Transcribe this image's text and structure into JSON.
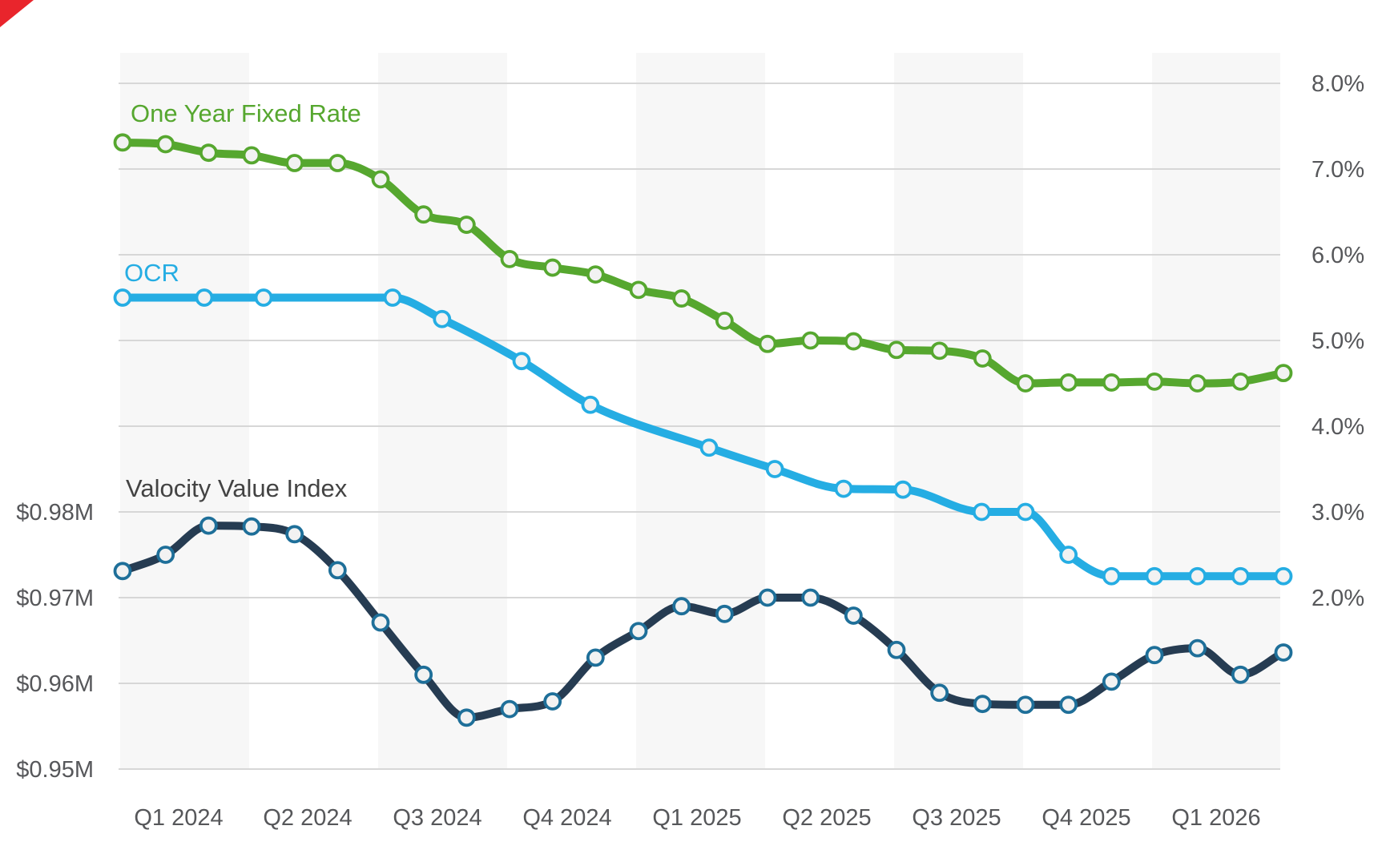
{
  "page": {
    "background": "#ffffff"
  },
  "corner_mark": {
    "color": "#e9252c"
  },
  "chart_data": {
    "type": "line",
    "title": "",
    "x": {
      "tick_labels": [
        "Q1 2024",
        "Q2 2024",
        "Q3 2024",
        "Q4 2024",
        "Q1 2025",
        "Q2 2025",
        "Q3 2025",
        "Q4 2025",
        "Q1 2026"
      ],
      "span": "Jan 2024 - Apr 2026",
      "interval": "monthly"
    },
    "y_right": {
      "min": 2.0,
      "max": 8.0,
      "step": 1.0,
      "format": "percent",
      "tick_labels": [
        "8.0%",
        "7.0%",
        "6.0%",
        "5.0%",
        "4.0%",
        "3.0%",
        "2.0%"
      ]
    },
    "y_left": {
      "min": 0.95,
      "max": 0.98,
      "step": 0.01,
      "format": "millions_dollars",
      "tick_labels": [
        "$0.98M",
        "$0.97M",
        "$0.96M",
        "$0.95M"
      ]
    },
    "grid": true,
    "quarter_band_shading": true,
    "legend_position": "inline-labels",
    "colors": {
      "fixed_rate": "#56a72f",
      "ocr": "#25ade3",
      "value_index_line": "#263c52",
      "value_index_marker_ring": "#1e6f99",
      "marker_fill": "#f2f2f2",
      "gridline": "#d7d7d7",
      "band": "#f7f7f7",
      "axis_text": "#56575a",
      "value_index_label_text": "#434343"
    },
    "series": [
      {
        "name": "One Year Fixed Rate",
        "axis": "right",
        "unit": "%",
        "monthly_values": [
          7.31,
          7.29,
          7.19,
          7.16,
          7.07,
          7.07,
          6.88,
          6.47,
          6.35,
          5.95,
          5.85,
          5.77,
          5.59,
          5.49,
          5.23,
          4.96,
          5.0,
          4.99,
          4.89,
          4.88,
          4.79,
          4.5,
          4.51,
          4.51,
          4.52,
          4.5,
          4.52,
          4.62
        ]
      },
      {
        "name": "OCR",
        "axis": "right",
        "unit": "%",
        "points_month_value": [
          [
            0,
            5.5
          ],
          [
            1.9,
            5.5
          ],
          [
            3.28,
            5.5
          ],
          [
            6.28,
            5.5
          ],
          [
            7.43,
            5.25
          ],
          [
            9.28,
            4.76
          ],
          [
            10.88,
            4.25
          ],
          [
            13.64,
            3.75
          ],
          [
            15.17,
            3.5
          ],
          [
            16.77,
            3.27
          ],
          [
            18.15,
            3.26
          ],
          [
            19.98,
            3.0
          ],
          [
            21.0,
            3.0
          ],
          [
            22.0,
            2.5
          ],
          [
            23.0,
            2.25
          ],
          [
            24.0,
            2.25
          ],
          [
            25.0,
            2.25
          ],
          [
            26.0,
            2.25
          ],
          [
            27.0,
            2.25
          ]
        ]
      },
      {
        "name": "Valocity Value Index",
        "axis": "left",
        "unit": "$M",
        "monthly_values": [
          0.9731,
          0.975,
          0.9784,
          0.9783,
          0.9774,
          0.9732,
          0.9671,
          0.961,
          0.956,
          0.957,
          0.9579,
          0.963,
          0.9661,
          0.969,
          0.9681,
          0.97,
          0.97,
          0.9679,
          0.9639,
          0.9589,
          0.9576,
          0.9575,
          0.9575,
          0.9602,
          0.9633,
          0.9641,
          0.961,
          0.9636
        ]
      }
    ]
  }
}
